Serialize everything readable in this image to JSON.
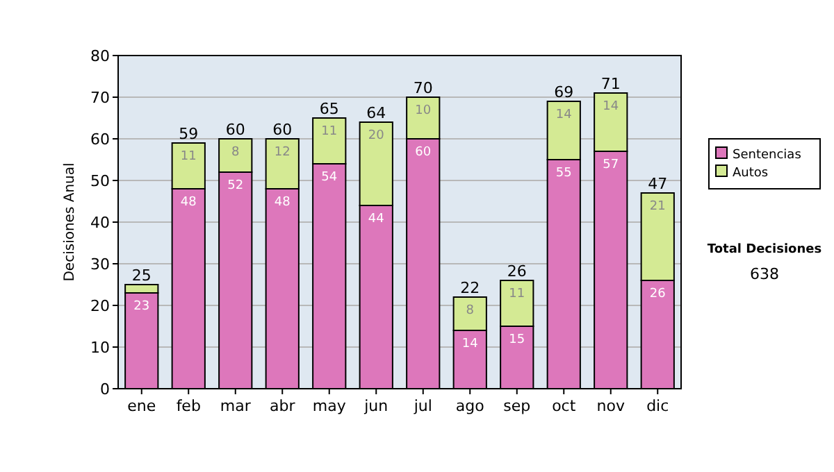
{
  "chart_data": {
    "type": "bar",
    "stacked": true,
    "ylabel": "Decisiones Anual",
    "categories": [
      "ene",
      "feb",
      "mar",
      "abr",
      "may",
      "jun",
      "jul",
      "ago",
      "sep",
      "oct",
      "nov",
      "dic"
    ],
    "series": [
      {
        "name": "Sentencias",
        "color": "#dd77bb",
        "values": [
          23,
          48,
          52,
          48,
          54,
          44,
          60,
          14,
          15,
          55,
          57,
          26
        ],
        "value_labels": [
          "23",
          "48",
          "52",
          "48",
          "54",
          "44",
          "60",
          "14",
          "15",
          "55",
          "57",
          "26"
        ]
      },
      {
        "name": "Autos",
        "color": "#d4ea94",
        "values": [
          2,
          11,
          8,
          12,
          11,
          20,
          10,
          8,
          11,
          14,
          14,
          21
        ],
        "value_labels": [
          null,
          "11",
          "8",
          "12",
          "11",
          "20",
          "10",
          "8",
          "11",
          "14",
          "14",
          "21"
        ]
      }
    ],
    "totals": [
      "25",
      "59",
      "60",
      "60",
      "65",
      "64",
      "70",
      "22",
      "26",
      "69",
      "71",
      "47"
    ],
    "ylim": [
      0,
      80
    ],
    "yticks": [
      0,
      10,
      20,
      30,
      40,
      50,
      60,
      70,
      80
    ],
    "grid": "y",
    "legend": "right",
    "annotations": [
      "Total Decisiones",
      "638"
    ]
  }
}
